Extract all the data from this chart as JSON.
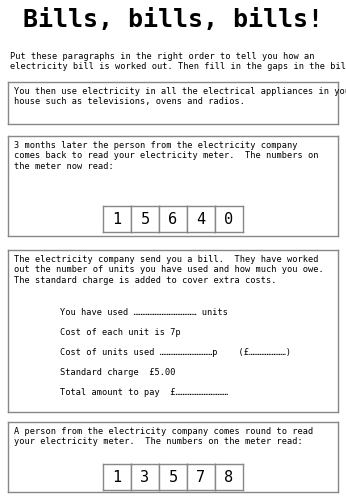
{
  "title": "Bills, bills, bills!",
  "subtitle": "Put these paragraphs in the right order to tell you how an\nelectricity bill is worked out. Then fill in the gaps in the bill.",
  "box1_text": "You then use electricity in all the electrical appliances in your\nhouse such as televisions, ovens and radios.",
  "box2_text": "3 months later the person from the electricity company\ncomes back to read your electricity meter.  The numbers on\nthe meter now read:",
  "box2_digits": [
    "1",
    "5",
    "6",
    "4",
    "0"
  ],
  "box3_text": "The electricity company send you a bill.  They have worked\nout the number of units you have used and how much you owe.\nThe standard charge is added to cover extra costs.",
  "box3_lines": [
    "You have used ……………………………… units",
    "Cost of each unit is 7p",
    "Cost of units used …………………………p    (£…………………)",
    "Standard charge  £5.00",
    "Total amount to pay  £…………………………"
  ],
  "box4_text": "A person from the electricity company comes round to read\nyour electricity meter.  The numbers on the meter read:",
  "box4_digits": [
    "1",
    "3",
    "5",
    "7",
    "8"
  ],
  "bg_color": "#ffffff",
  "text_color": "#000000",
  "box_edge_color": "#888888"
}
